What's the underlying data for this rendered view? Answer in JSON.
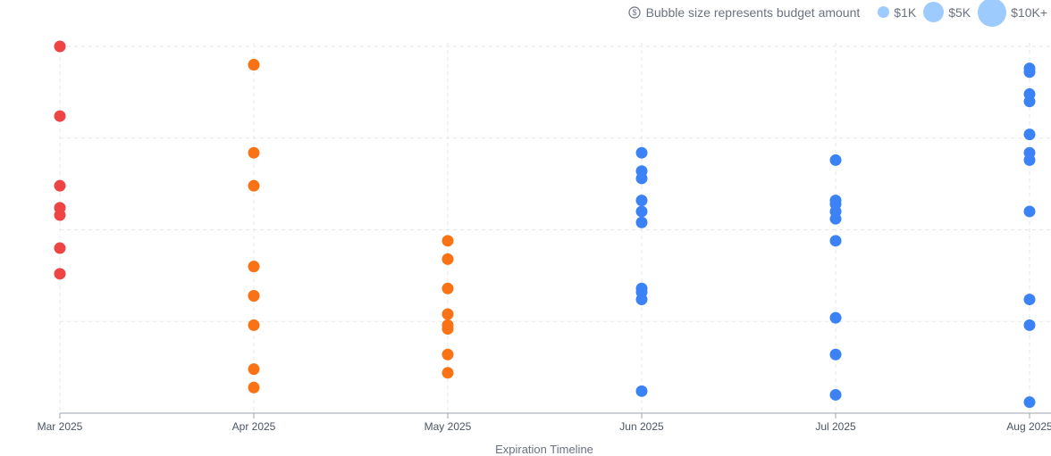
{
  "legend": {
    "note_icon": "dollar-circle-icon",
    "note": "Bubble size represents budget amount",
    "sizes": [
      {
        "label": "$1K"
      },
      {
        "label": "$5K"
      },
      {
        "label": "$10K+"
      }
    ]
  },
  "chart_data": {
    "type": "scatter",
    "xlabel": "Expiration Timeline",
    "ylabel": "",
    "x_ticks": [
      "Mar 2025",
      "Apr 2025",
      "May 2025",
      "Jun 2025",
      "Jul 2025",
      "Aug 2025"
    ],
    "ylim": [
      0,
      100
    ],
    "grid": true,
    "colors": {
      "Mar 2025": "#ef4444",
      "Apr 2025": "#f97316",
      "May 2025": "#f97316",
      "Jun 2025": "#3b82f6",
      "Jul 2025": "#3b82f6",
      "Aug 2025": "#3b82f6"
    },
    "points": [
      {
        "x": "Mar 2025",
        "y": [
          100,
          81,
          62,
          56,
          54,
          45,
          38
        ]
      },
      {
        "x": "Apr 2025",
        "y": [
          95,
          95,
          71,
          62,
          40,
          32,
          32,
          24,
          12,
          7
        ]
      },
      {
        "x": "May 2025",
        "y": [
          47,
          42,
          34,
          27,
          24,
          23,
          16,
          11
        ]
      },
      {
        "x": "Jun 2025",
        "y": [
          71,
          66,
          64,
          58,
          55,
          52,
          34,
          33,
          31,
          6
        ]
      },
      {
        "x": "Jul 2025",
        "y": [
          69,
          58,
          57,
          55,
          53,
          47,
          26,
          16,
          5
        ]
      },
      {
        "x": "Aug 2025",
        "y": [
          94,
          93,
          87,
          85,
          76,
          71,
          69,
          55,
          31,
          24,
          3
        ]
      }
    ]
  }
}
